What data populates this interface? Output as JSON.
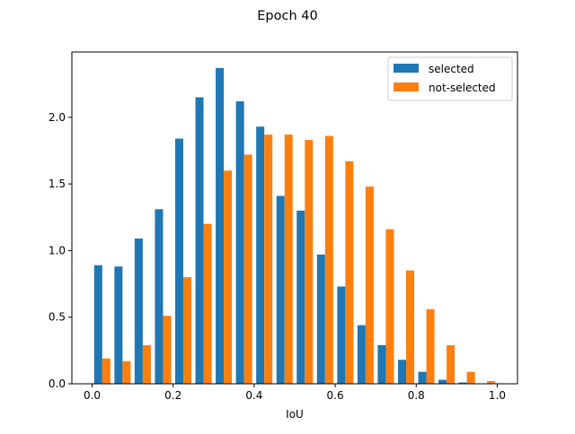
{
  "chart_data": {
    "type": "bar",
    "title": "Epoch 40",
    "xlabel": "IoU",
    "ylabel": "",
    "xlim": [
      -0.05,
      1.05
    ],
    "ylim": [
      0,
      2.49
    ],
    "xticks": [
      0.0,
      0.2,
      0.4,
      0.6,
      0.8,
      1.0
    ],
    "xtick_labels": [
      "0.0",
      "0.2",
      "0.4",
      "0.6",
      "0.8",
      "1.0"
    ],
    "yticks": [
      0.0,
      0.5,
      1.0,
      1.5,
      2.0
    ],
    "ytick_labels": [
      "0.0",
      "0.5",
      "1.0",
      "1.5",
      "2.0"
    ],
    "bin_edges": [
      0.0,
      0.05,
      0.1,
      0.15,
      0.2,
      0.25,
      0.3,
      0.35,
      0.4,
      0.45,
      0.5,
      0.55,
      0.6,
      0.65,
      0.7,
      0.75,
      0.8,
      0.85,
      0.9,
      0.95,
      1.0
    ],
    "grid": false,
    "legend_position": "top-right",
    "series": [
      {
        "name": "selected",
        "color": "#1f77b4",
        "values": [
          0.89,
          0.88,
          1.09,
          1.31,
          1.84,
          2.15,
          2.37,
          2.12,
          1.93,
          1.41,
          1.3,
          0.97,
          0.73,
          0.44,
          0.29,
          0.18,
          0.09,
          0.03,
          0.01,
          0.0
        ]
      },
      {
        "name": "not-selected",
        "color": "#ff7f0e",
        "values": [
          0.19,
          0.17,
          0.29,
          0.51,
          0.8,
          1.2,
          1.6,
          1.72,
          1.87,
          1.87,
          1.83,
          1.86,
          1.67,
          1.48,
          1.16,
          0.85,
          0.56,
          0.29,
          0.09,
          0.02
        ]
      }
    ]
  }
}
